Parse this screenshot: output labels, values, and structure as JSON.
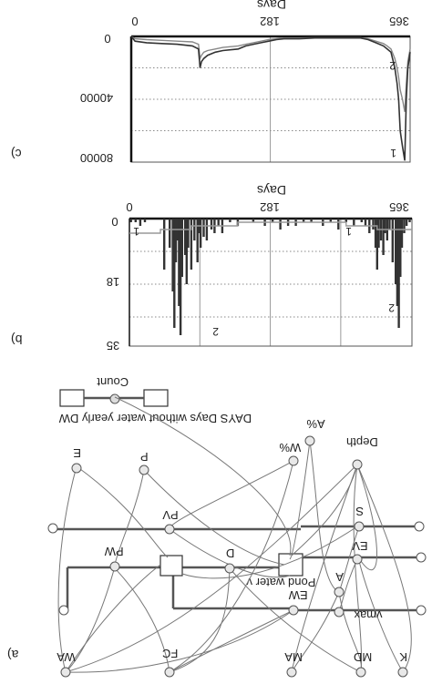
{
  "panels": {
    "a": {
      "label": "a)"
    },
    "b": {
      "label": "b)"
    },
    "c": {
      "label": "c)"
    }
  },
  "chart_data": [
    {
      "panel": "c",
      "type": "line",
      "title": "",
      "xlabel": "Days",
      "ylabel": "",
      "xlim": [
        0,
        365
      ],
      "ylim": [
        0,
        80000
      ],
      "y_inverted": true,
      "x_ticks": [
        "0",
        "182",
        "365"
      ],
      "y_ticks": [
        "0",
        "40000",
        "80000"
      ],
      "grid": "dotted",
      "series": [
        {
          "label": "1",
          "color": "#333333",
          "x": [
            0,
            5,
            20,
            40,
            60,
            80,
            88,
            90,
            92,
            95,
            100,
            110,
            120,
            140,
            150,
            160,
            170,
            180,
            190,
            200,
            210,
            220,
            240,
            260,
            280,
            300,
            310,
            320,
            330,
            335,
            340,
            345,
            348,
            350,
            352,
            355,
            358,
            360,
            362,
            365
          ],
          "values": [
            0,
            3000,
            4000,
            4500,
            5000,
            6000,
            8000,
            20000,
            16000,
            14000,
            12000,
            10000,
            9000,
            8000,
            6000,
            5000,
            4000,
            3000,
            2000,
            1500,
            1500,
            1500,
            1000,
            1000,
            1000,
            1000,
            2000,
            4000,
            6000,
            8000,
            10000,
            20000,
            30000,
            40000,
            60000,
            70000,
            79000,
            40000,
            20000,
            10000
          ]
        },
        {
          "label": "2",
          "color": "#888888",
          "x": [
            0,
            5,
            20,
            40,
            60,
            80,
            88,
            90,
            92,
            95,
            100,
            110,
            120,
            140,
            150,
            160,
            170,
            180,
            190,
            200,
            210,
            220,
            240,
            260,
            280,
            300,
            310,
            320,
            330,
            335,
            340,
            345,
            348,
            350,
            352,
            355,
            358,
            360,
            362,
            365
          ],
          "values": [
            0,
            1500,
            2000,
            2500,
            3000,
            3500,
            5000,
            14000,
            12000,
            10000,
            9000,
            8000,
            7000,
            6000,
            5000,
            4000,
            3000,
            2000,
            1500,
            1000,
            1000,
            1000,
            800,
            800,
            800,
            800,
            1500,
            3000,
            4500,
            6000,
            8000,
            14000,
            20000,
            26000,
            34000,
            40000,
            48000,
            30000,
            16000,
            8000
          ]
        }
      ]
    },
    {
      "panel": "b",
      "type": "bar",
      "title": "",
      "xlabel": "Days",
      "ylabel": "",
      "xlim": [
        0,
        365
      ],
      "ylim": [
        0,
        35
      ],
      "y_inverted": true,
      "x_ticks": [
        "0",
        "182",
        "365"
      ],
      "y_ticks": [
        "0",
        "18",
        "35"
      ],
      "grid": "dotted",
      "series": [
        {
          "label": "1",
          "color": "#333333",
          "x": [
            2,
            8,
            14,
            20,
            45,
            52,
            56,
            58,
            60,
            62,
            64,
            66,
            68,
            72,
            74,
            76,
            80,
            84,
            88,
            90,
            92,
            96,
            100,
            106,
            110,
            115,
            120,
            130,
            140,
            160,
            175,
            185,
            195,
            205,
            215,
            225,
            235,
            250,
            260,
            270,
            280,
            290,
            300,
            305,
            310,
            315,
            318,
            320,
            322,
            325,
            328,
            330,
            333,
            336,
            340,
            344,
            346,
            348,
            350,
            352,
            355,
            358,
            362
          ],
          "values": [
            1,
            1,
            2,
            1,
            14,
            8,
            20,
            30,
            12,
            6,
            24,
            32,
            16,
            10,
            18,
            8,
            14,
            6,
            12,
            4,
            8,
            5,
            6,
            3,
            4,
            2,
            4,
            1,
            2,
            1,
            2,
            1,
            3,
            2,
            2,
            1,
            1,
            2,
            1,
            3,
            1,
            2,
            1,
            2,
            4,
            3,
            8,
            14,
            8,
            6,
            10,
            4,
            6,
            3,
            12,
            18,
            24,
            30,
            16,
            8,
            4,
            2,
            1
          ]
        },
        {
          "label": "2",
          "color": "#999999",
          "x": [
            0,
            20,
            40,
            60,
            80,
            100,
            120,
            140,
            160,
            180,
            200,
            220,
            240,
            260,
            280,
            300,
            320,
            340,
            365
          ],
          "values": [
            4,
            4,
            3,
            3,
            2,
            2,
            2,
            1,
            1,
            1,
            1,
            1,
            1,
            1,
            2,
            2,
            3,
            3,
            3
          ]
        }
      ]
    }
  ],
  "diagram": {
    "stocks": {
      "pond_water": "Pond water v",
      "count": "Count"
    },
    "variables": {
      "E": "E",
      "P": "P",
      "Wp": "W%",
      "Ap": "A%",
      "Depth": "Depth",
      "PV": "PV",
      "PW": "PW",
      "D": "D",
      "S": "S",
      "EV": "EV",
      "EW": "EW",
      "A": "A",
      "vmax": "vmax",
      "WA": "WA",
      "FC": "FC",
      "MA": "MA",
      "MD": "MD",
      "K": "K"
    },
    "caption": "DAYS Days without water yearly DW"
  }
}
